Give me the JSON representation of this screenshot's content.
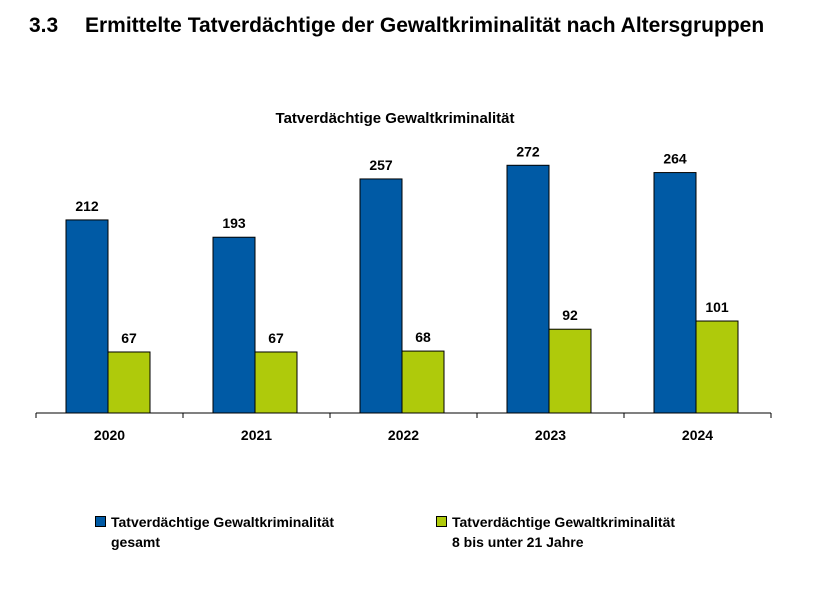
{
  "heading": {
    "number": "3.3",
    "title": "Ermittelte Tatverdächtige der Gewaltkriminalität nach Altersgruppen"
  },
  "chart_data": {
    "type": "bar",
    "title": "Tatverdächtige Gewaltkriminalität",
    "categories": [
      "2020",
      "2021",
      "2022",
      "2023",
      "2024"
    ],
    "series": [
      {
        "name": "Tatverdächtige Gewaltkriminalität gesamt",
        "values": [
          212,
          193,
          257,
          272,
          264
        ],
        "color": "#005AA5"
      },
      {
        "name": "Tatverdächtige Gewaltkriminalität 8 bis unter 21 Jahre",
        "values": [
          67,
          67,
          68,
          92,
          101
        ],
        "color": "#AFCA0B"
      }
    ],
    "ylim": [
      0,
      280
    ],
    "grid": false,
    "legend_position": "bottom"
  },
  "legend": [
    {
      "line1": "Tatverdächtige Gewaltkriminalität",
      "line2": "gesamt"
    },
    {
      "line1": "Tatverdächtige Gewaltkriminalität",
      "line2": "8 bis unter 21 Jahre"
    }
  ]
}
